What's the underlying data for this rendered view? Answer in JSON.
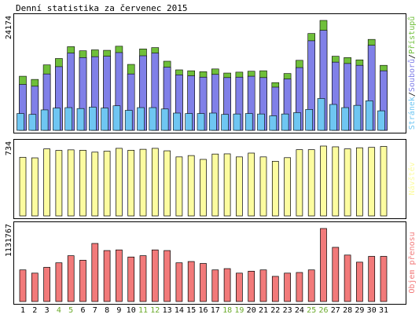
{
  "title": "Denní statistika za červenec 2015",
  "colors": {
    "background": "#ffffff",
    "text": "#000000",
    "weekend_day": "#6aaa2a",
    "hits": "#6fbf3a",
    "files": "#8080e8",
    "pages": "#6fc6f2",
    "visits": "#fcfca0",
    "bytes": "#f27a7a",
    "bar_outline": "#000000"
  },
  "chart_data": [
    {
      "type": "bar",
      "title": "Denní statistika za červenec 2015",
      "categories": [
        "1",
        "2",
        "3",
        "4",
        "5",
        "6",
        "7",
        "8",
        "9",
        "10",
        "11",
        "12",
        "13",
        "14",
        "15",
        "16",
        "17",
        "18",
        "19",
        "20",
        "21",
        "22",
        "23",
        "24",
        "25",
        "26",
        "27",
        "28",
        "29",
        "30",
        "31"
      ],
      "weekend_days": [
        "4",
        "5",
        "11",
        "12",
        "18",
        "19",
        "25",
        "26"
      ],
      "ylabel": "24174",
      "ylim": [
        0,
        24174
      ],
      "y_max_label": "24174",
      "legend": {
        "parts": [
          {
            "text": "Stránek",
            "color": "#6fc6f2"
          },
          {
            "text": "/",
            "color": "#000000"
          },
          {
            "text": "Souborů",
            "color": "#8080e8"
          },
          {
            "text": "/",
            "color": "#000000"
          },
          {
            "text": "Přístupů",
            "color": "#6fbf3a"
          }
        ],
        "placement": "right"
      },
      "series": [
        {
          "name": "Přístupů",
          "values": [
            11900,
            11200,
            14400,
            15800,
            18400,
            17500,
            17700,
            17600,
            18500,
            14500,
            17900,
            18200,
            15200,
            13300,
            13100,
            12900,
            13500,
            12600,
            12800,
            13000,
            13100,
            10500,
            12500,
            15400,
            21300,
            24174,
            16300,
            16000,
            15500,
            20000,
            14300
          ]
        },
        {
          "name": "Souborů",
          "values": [
            10100,
            9700,
            12400,
            14000,
            17000,
            16000,
            16200,
            16300,
            17100,
            12400,
            16400,
            17000,
            13900,
            12200,
            12000,
            11700,
            12300,
            11600,
            11700,
            11900,
            11600,
            9500,
            11300,
            13800,
            19700,
            22000,
            15000,
            14700,
            14300,
            18700,
            13100
          ]
        },
        {
          "name": "Stránek",
          "values": [
            3700,
            3500,
            4500,
            4900,
            5000,
            4800,
            5100,
            4900,
            5400,
            4400,
            5000,
            5000,
            4700,
            3800,
            3700,
            3700,
            3800,
            3500,
            3600,
            3700,
            3600,
            3200,
            3600,
            3900,
            4600,
            7000,
            5700,
            5000,
            5500,
            6500,
            4300
          ]
        }
      ]
    },
    {
      "type": "bar",
      "categories": [
        "1",
        "2",
        "3",
        "4",
        "5",
        "6",
        "7",
        "8",
        "9",
        "10",
        "11",
        "12",
        "13",
        "14",
        "15",
        "16",
        "17",
        "18",
        "19",
        "20",
        "21",
        "22",
        "23",
        "24",
        "25",
        "26",
        "27",
        "28",
        "29",
        "30",
        "31"
      ],
      "ylim": [
        0,
        734
      ],
      "y_max_label": "734",
      "legend": {
        "parts": [
          {
            "text": "Návštěv",
            "color": "#fcfca0"
          }
        ],
        "placement": "right"
      },
      "series": [
        {
          "name": "Návštěv",
          "values": [
            616,
            610,
            704,
            688,
            694,
            690,
            670,
            680,
            710,
            690,
            700,
            710,
            684,
            620,
            634,
            594,
            650,
            652,
            620,
            660,
            620,
            574,
            612,
            696,
            696,
            734,
            726,
            704,
            716,
            720,
            730
          ]
        }
      ]
    },
    {
      "type": "bar",
      "categories": [
        "1",
        "2",
        "3",
        "4",
        "5",
        "6",
        "7",
        "8",
        "9",
        "10",
        "11",
        "12",
        "13",
        "14",
        "15",
        "16",
        "17",
        "18",
        "19",
        "20",
        "21",
        "22",
        "23",
        "24",
        "25",
        "26",
        "27",
        "28",
        "29",
        "30",
        "31"
      ],
      "ylim": [
        0,
        1131767
      ],
      "y_max_label": "1131767",
      "legend": {
        "parts": [
          {
            "text": "Objem přenosu",
            "color": "#f27a7a"
          }
        ],
        "placement": "right"
      },
      "series": [
        {
          "name": "Objem přenosu",
          "values": [
            490000,
            440000,
            530000,
            600000,
            710000,
            640000,
            900000,
            790000,
            800000,
            690000,
            710000,
            800000,
            790000,
            600000,
            620000,
            590000,
            490000,
            510000,
            440000,
            470000,
            490000,
            390000,
            440000,
            450000,
            490000,
            1131767,
            840000,
            720000,
            610000,
            700000,
            700000
          ]
        }
      ]
    }
  ]
}
